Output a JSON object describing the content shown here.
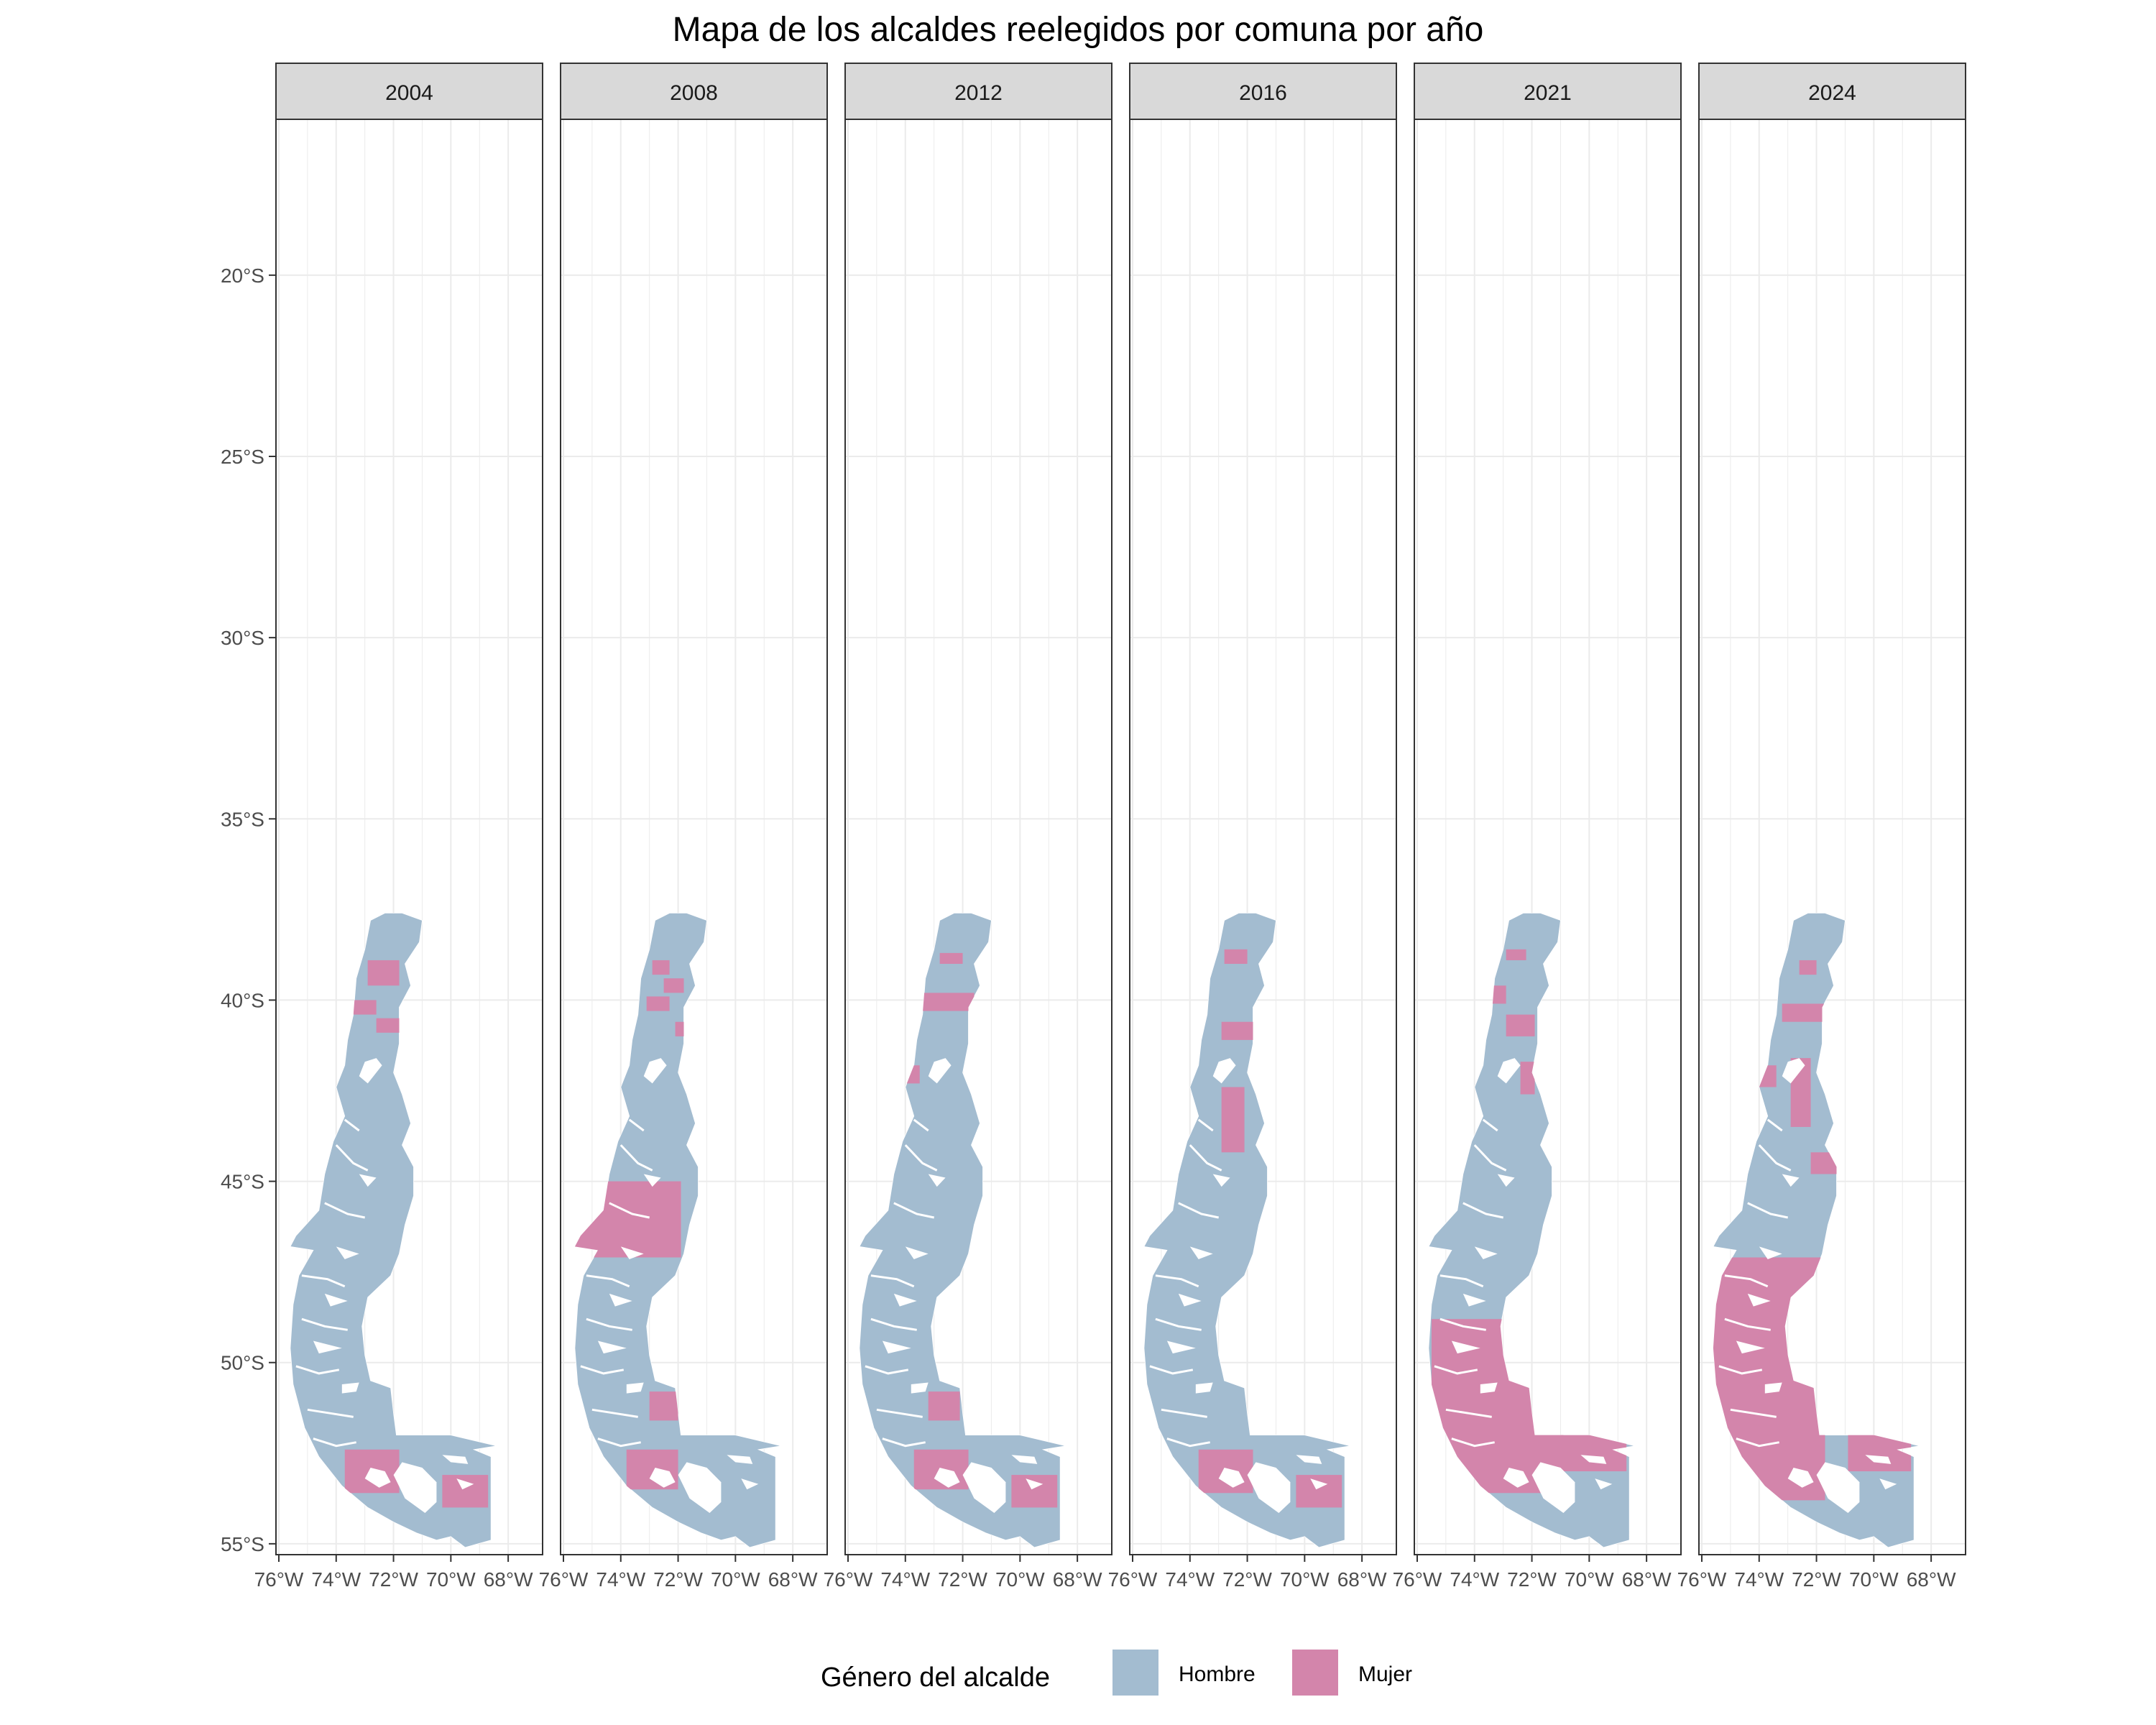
{
  "title": "Mapa de los alcaldes reelegidos por comuna por año",
  "facets": [
    "2004",
    "2008",
    "2012",
    "2016",
    "2021",
    "2024"
  ],
  "y_axis": {
    "ticks": [
      {
        "value": -20,
        "label": "20°S"
      },
      {
        "value": -25,
        "label": "25°S"
      },
      {
        "value": -30,
        "label": "30°S"
      },
      {
        "value": -35,
        "label": "35°S"
      },
      {
        "value": -40,
        "label": "40°S"
      },
      {
        "value": -45,
        "label": "45°S"
      },
      {
        "value": -50,
        "label": "50°S"
      },
      {
        "value": -55,
        "label": "55°S"
      }
    ],
    "range": [
      -55.3,
      -15.7
    ]
  },
  "x_axis": {
    "ticks": [
      {
        "value": -76,
        "label": "76°W"
      },
      {
        "value": -74,
        "label": "74°W"
      },
      {
        "value": -72,
        "label": "72°W"
      },
      {
        "value": -70,
        "label": "70°W"
      },
      {
        "value": -68,
        "label": "68°W"
      }
    ],
    "range": [
      -76.1,
      -66.8
    ]
  },
  "legend": {
    "title": "Género del alcalde",
    "items": [
      {
        "label": "Hombre",
        "color": "#a3bcd0"
      },
      {
        "label": "Mujer",
        "color": "#d385ab"
      }
    ]
  },
  "chart_data": {
    "type": "choropleth-map",
    "grid": true,
    "legend_position": "bottom",
    "categories": [
      "Hombre",
      "Mujer"
    ],
    "colors": {
      "Hombre": "#a3bcd0",
      "Mujer": "#d385ab"
    },
    "panels": [
      {
        "year": "2004",
        "mujer_regions": [
          [
            -72.9,
            -38.9,
            -71.8,
            -39.6
          ],
          [
            -73.4,
            -40.0,
            -72.6,
            -40.4
          ],
          [
            -72.6,
            -40.5,
            -71.6,
            -40.9
          ],
          [
            -73.7,
            -52.4,
            -71.8,
            -53.6
          ],
          [
            -70.3,
            -53.1,
            -68.7,
            -54.0
          ]
        ]
      },
      {
        "year": "2008",
        "mujer_regions": [
          [
            -72.9,
            -38.9,
            -72.3,
            -39.3
          ],
          [
            -73.1,
            -39.9,
            -72.3,
            -40.3
          ],
          [
            -72.5,
            -39.4,
            -71.8,
            -39.8
          ],
          [
            -72.1,
            -40.6,
            -71.4,
            -41.0
          ],
          [
            -75.6,
            -45.0,
            -71.9,
            -47.1
          ],
          [
            -73.0,
            -50.8,
            -72.0,
            -51.6
          ],
          [
            -73.8,
            -52.4,
            -72.0,
            -53.5
          ]
        ]
      },
      {
        "year": "2012",
        "mujer_regions": [
          [
            -72.8,
            -38.7,
            -72.0,
            -39.0
          ],
          [
            -73.6,
            -39.8,
            -71.6,
            -40.3
          ],
          [
            -74.0,
            -41.8,
            -73.5,
            -42.3
          ],
          [
            -73.2,
            -50.8,
            -72.1,
            -51.6
          ],
          [
            -73.7,
            -52.4,
            -71.8,
            -53.5
          ],
          [
            -70.3,
            -53.1,
            -68.7,
            -54.0
          ]
        ]
      },
      {
        "year": "2016",
        "mujer_regions": [
          [
            -72.8,
            -38.6,
            -72.0,
            -39.0
          ],
          [
            -72.9,
            -40.6,
            -71.8,
            -41.1
          ],
          [
            -72.9,
            -42.4,
            -72.1,
            -44.2
          ],
          [
            -73.7,
            -52.4,
            -71.8,
            -53.6
          ],
          [
            -70.3,
            -53.1,
            -68.7,
            -54.0
          ]
        ]
      },
      {
        "year": "2021",
        "mujer_regions": [
          [
            -72.9,
            -38.6,
            -72.2,
            -38.9
          ],
          [
            -73.4,
            -39.6,
            -72.9,
            -40.1
          ],
          [
            -72.9,
            -40.4,
            -71.9,
            -41.0
          ],
          [
            -72.4,
            -41.7,
            -71.9,
            -42.6
          ],
          [
            -75.5,
            -48.8,
            -70.9,
            -53.6
          ],
          [
            -71.0,
            -52.0,
            -68.7,
            -53.0
          ]
        ]
      },
      {
        "year": "2024",
        "mujer_regions": [
          [
            -72.6,
            -38.9,
            -72.0,
            -39.3
          ],
          [
            -73.2,
            -40.1,
            -71.3,
            -40.6
          ],
          [
            -74.2,
            -41.8,
            -73.4,
            -42.4
          ],
          [
            -72.9,
            -41.6,
            -72.2,
            -43.5
          ],
          [
            -72.2,
            -44.2,
            -71.1,
            -44.8
          ],
          [
            -75.8,
            -47.1,
            -71.7,
            -53.8
          ],
          [
            -70.9,
            -52.0,
            -68.7,
            -53.0
          ]
        ]
      }
    ]
  }
}
